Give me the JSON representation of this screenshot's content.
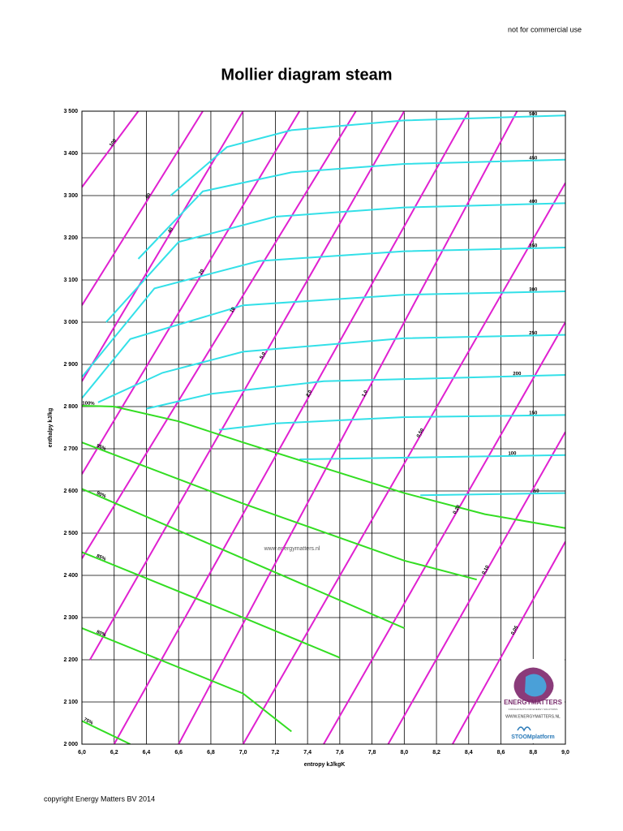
{
  "header_note": "not for commercial use",
  "footer": "copyright Energy Matters BV 2014",
  "watermark": "www.energymatters.nl",
  "logo": {
    "brand": "ENERGYMATTERS",
    "tagline": "CONSULTANTS FOR ENERGY SOLUTIONS",
    "url": "WWW.ENERGYMATTERS.NL",
    "partner": "STOOMplatform"
  },
  "chart_data": {
    "type": "line",
    "title": "Mollier diagram steam",
    "x_label": "entropy kJ/kgK",
    "y_label": "enthalpy kJ/kg",
    "xlim": [
      6.0,
      9.0
    ],
    "ylim": [
      2000,
      3500
    ],
    "grid": true,
    "xticks": [
      {
        "value": 6.0,
        "label": "6,0"
      },
      {
        "value": 6.2,
        "label": "6,2"
      },
      {
        "value": 6.4,
        "label": "6,4"
      },
      {
        "value": 6.6,
        "label": "6,6"
      },
      {
        "value": 6.8,
        "label": "6,8"
      },
      {
        "value": 7.0,
        "label": "7,0"
      },
      {
        "value": 7.2,
        "label": "7,2"
      },
      {
        "value": 7.4,
        "label": "7,4"
      },
      {
        "value": 7.6,
        "label": "7,6"
      },
      {
        "value": 7.8,
        "label": "7,8"
      },
      {
        "value": 8.0,
        "label": "8,0"
      },
      {
        "value": 8.2,
        "label": "8,2"
      },
      {
        "value": 8.4,
        "label": "8,4"
      },
      {
        "value": 8.6,
        "label": "8,6"
      },
      {
        "value": 8.8,
        "label": "8,8"
      },
      {
        "value": 9.0,
        "label": "9,0"
      }
    ],
    "yticks": [
      {
        "value": 2000,
        "label": "2 000"
      },
      {
        "value": 2100,
        "label": "2 100"
      },
      {
        "value": 2200,
        "label": "2 200"
      },
      {
        "value": 2300,
        "label": "2 300"
      },
      {
        "value": 2400,
        "label": "2 400"
      },
      {
        "value": 2500,
        "label": "2 500"
      },
      {
        "value": 2600,
        "label": "2 600"
      },
      {
        "value": 2700,
        "label": "2 700"
      },
      {
        "value": 2800,
        "label": "2 800"
      },
      {
        "value": 2900,
        "label": "2 900"
      },
      {
        "value": 3000,
        "label": "3 000"
      },
      {
        "value": 3100,
        "label": "3 100"
      },
      {
        "value": 3200,
        "label": "3 200"
      },
      {
        "value": 3300,
        "label": "3 300"
      },
      {
        "value": 3400,
        "label": "3 400"
      },
      {
        "value": 3500,
        "label": "3 500"
      }
    ],
    "series": [
      {
        "name": "100",
        "color": "#e020d0",
        "x": [
          6.0,
          6.35
        ],
        "values": [
          3320,
          3500
        ]
      },
      {
        "name": "60",
        "color": "#e020d0",
        "x": [
          6.0,
          6.75
        ],
        "values": [
          3040,
          3500
        ]
      },
      {
        "name": "40",
        "color": "#e020d0",
        "x": [
          6.0,
          7.0
        ],
        "values": [
          2860,
          3500
        ]
      },
      {
        "name": "20",
        "color": "#e020d0",
        "x": [
          6.0,
          7.35
        ],
        "values": [
          2640,
          3500
        ]
      },
      {
        "name": "10",
        "color": "#e020d0",
        "x": [
          6.0,
          7.7
        ],
        "values": [
          2440,
          3500
        ]
      },
      {
        "name": "5,0",
        "color": "#e020d0",
        "x": [
          6.05,
          8.0
        ],
        "values": [
          2200,
          3500
        ]
      },
      {
        "name": "2,0",
        "color": "#e020d0",
        "x": [
          6.2,
          8.4
        ],
        "values": [
          2000,
          3500
        ]
      },
      {
        "name": "1,0",
        "color": "#e020d0",
        "x": [
          6.6,
          8.7
        ],
        "values": [
          2000,
          3500
        ]
      },
      {
        "name": "0,50",
        "color": "#e020d0",
        "x": [
          7.0,
          9.0
        ],
        "values": [
          2000,
          3330
        ]
      },
      {
        "name": "0,20",
        "color": "#e020d0",
        "x": [
          7.5,
          9.0
        ],
        "values": [
          2000,
          3000
        ]
      },
      {
        "name": "0,10",
        "color": "#e020d0",
        "x": [
          7.9,
          9.0
        ],
        "values": [
          2000,
          2740
        ]
      },
      {
        "name": "0,05",
        "color": "#e020d0",
        "x": [
          8.3,
          9.0
        ],
        "values": [
          2000,
          2480
        ]
      },
      {
        "name": "500",
        "color": "#33e0e8",
        "x": [
          6.55,
          6.9,
          7.3,
          8.0,
          9.0
        ],
        "values": [
          3300,
          3415,
          3455,
          3478,
          3490
        ]
      },
      {
        "name": "450",
        "color": "#33e0e8",
        "x": [
          6.35,
          6.75,
          7.3,
          8.0,
          9.0
        ],
        "values": [
          3150,
          3310,
          3355,
          3375,
          3385
        ]
      },
      {
        "name": "400",
        "color": "#33e0e8",
        "x": [
          6.15,
          6.6,
          7.2,
          8.0,
          9.0
        ],
        "values": [
          3000,
          3190,
          3250,
          3272,
          3282
        ]
      },
      {
        "name": "350",
        "color": "#33e0e8",
        "x": [
          6.0,
          6.45,
          7.1,
          8.0,
          9.0
        ],
        "values": [
          2870,
          3080,
          3145,
          3168,
          3177
        ]
      },
      {
        "name": "300",
        "color": "#33e0e8",
        "x": [
          6.0,
          6.3,
          7.0,
          8.0,
          9.0
        ],
        "values": [
          2820,
          2960,
          3040,
          3065,
          3073
        ]
      },
      {
        "name": "250",
        "color": "#33e0e8",
        "x": [
          6.1,
          6.5,
          7.0,
          8.0,
          9.0
        ],
        "values": [
          2810,
          2880,
          2930,
          2962,
          2970
        ]
      },
      {
        "name": "200",
        "color": "#33e0e8",
        "x": [
          6.4,
          6.8,
          7.5,
          9.0
        ],
        "values": [
          2795,
          2830,
          2860,
          2875
        ]
      },
      {
        "name": "150",
        "color": "#33e0e8",
        "x": [
          6.85,
          7.2,
          8.0,
          9.0
        ],
        "values": [
          2745,
          2760,
          2775,
          2780
        ]
      },
      {
        "name": "100",
        "color": "#33e0e8",
        "x": [
          7.35,
          9.0
        ],
        "values": [
          2675,
          2685
        ]
      },
      {
        "name": "50",
        "color": "#33e0e8",
        "x": [
          8.1,
          9.0
        ],
        "values": [
          2590,
          2595
        ]
      },
      {
        "name": "100%",
        "color": "#33dd22",
        "x": [
          6.0,
          6.2,
          6.6,
          7.0,
          7.5,
          8.0,
          8.5,
          9.0
        ],
        "values": [
          2802,
          2800,
          2765,
          2715,
          2655,
          2595,
          2545,
          2512
        ]
      },
      {
        "name": "95%",
        "color": "#33dd22",
        "x": [
          6.0,
          7.0,
          8.0,
          8.45
        ],
        "values": [
          2715,
          2570,
          2435,
          2390
        ]
      },
      {
        "name": "90%",
        "color": "#33dd22",
        "x": [
          6.0,
          7.0,
          8.0
        ],
        "values": [
          2605,
          2440,
          2275
        ]
      },
      {
        "name": "85%",
        "color": "#33dd22",
        "x": [
          6.0,
          7.0,
          7.6
        ],
        "values": [
          2455,
          2300,
          2205
        ]
      },
      {
        "name": "80%",
        "color": "#33dd22",
        "x": [
          6.0,
          7.0,
          7.3
        ],
        "values": [
          2275,
          2120,
          2030
        ]
      },
      {
        "name": "75%",
        "color": "#33dd22",
        "x": [
          6.0,
          6.3
        ],
        "values": [
          2055,
          2000
        ]
      }
    ]
  }
}
